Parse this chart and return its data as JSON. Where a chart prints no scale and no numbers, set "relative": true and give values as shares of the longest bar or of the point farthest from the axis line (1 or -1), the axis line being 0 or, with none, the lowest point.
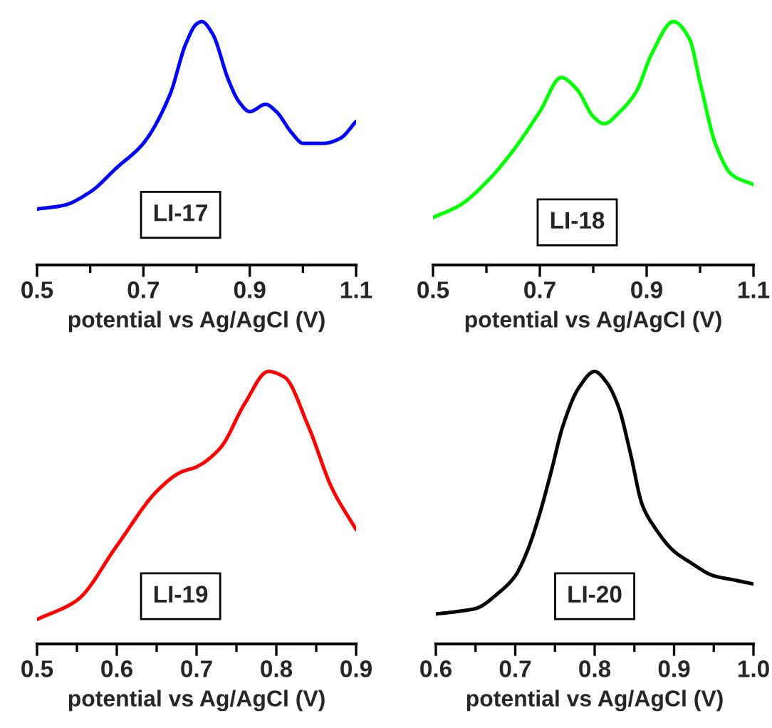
{
  "chart_data": [
    {
      "type": "line",
      "relative": true,
      "xlabel": "potential vs Ag/AgCl (V)",
      "annotations": [
        "LI-17"
      ],
      "tick_labels": "x",
      "grid": false,
      "legend": false,
      "xlim": [
        0.5,
        1.1
      ],
      "xticks": [
        0.5,
        {
          "value": 0.6,
          "label": null
        },
        0.7,
        {
          "value": 0.8,
          "label": null
        },
        0.9,
        {
          "value": 1.0,
          "label": null
        },
        1.1
      ],
      "series": [
        {
          "color": "#0000ff",
          "x": [
            0.5,
            0.55,
            0.6,
            0.65,
            0.7,
            0.75,
            0.78,
            0.8,
            0.81,
            0.83,
            0.86,
            0.88,
            0.9,
            0.93,
            0.95,
            0.98,
            1.0,
            1.04,
            1.07,
            1.1
          ],
          "values": [
            0.23,
            0.245,
            0.3,
            0.4,
            0.5,
            0.7,
            0.91,
            0.99,
            1.0,
            0.95,
            0.76,
            0.67,
            0.63,
            0.66,
            0.63,
            0.54,
            0.5,
            0.5,
            0.52,
            0.59
          ]
        }
      ]
    },
    {
      "type": "line",
      "relative": true,
      "xlabel": "potential vs Ag/AgCl (V)",
      "annotations": [
        "LI-18"
      ],
      "tick_labels": "x",
      "grid": false,
      "legend": false,
      "xlim": [
        0.5,
        1.1
      ],
      "xticks": [
        0.5,
        {
          "value": 0.6,
          "label": null
        },
        0.7,
        {
          "value": 0.8,
          "label": null
        },
        0.9,
        {
          "value": 1.0,
          "label": null
        },
        1.1
      ],
      "series": [
        {
          "color": "#00ff00",
          "x": [
            0.5,
            0.55,
            0.6,
            0.65,
            0.7,
            0.74,
            0.77,
            0.8,
            0.82,
            0.85,
            0.88,
            0.91,
            0.95,
            0.98,
            1.0,
            1.03,
            1.06,
            1.1
          ],
          "values": [
            0.195,
            0.245,
            0.34,
            0.47,
            0.63,
            0.77,
            0.72,
            0.61,
            0.58,
            0.63,
            0.71,
            0.87,
            1.0,
            0.93,
            0.75,
            0.49,
            0.37,
            0.33
          ]
        }
      ]
    },
    {
      "type": "line",
      "relative": true,
      "xlabel": "potential vs Ag/AgCl (V)",
      "annotations": [
        "LI-19"
      ],
      "tick_labels": "x",
      "grid": false,
      "legend": false,
      "xlim": [
        0.5,
        0.9
      ],
      "xticks": [
        0.5,
        {
          "value": 0.55,
          "label": null
        },
        0.6,
        {
          "value": 0.65,
          "label": null
        },
        0.7,
        {
          "value": 0.75,
          "label": null
        },
        0.8,
        {
          "value": 0.85,
          "label": null
        },
        0.9
      ],
      "series": [
        {
          "color": "#ff0000",
          "x": [
            0.5,
            0.55,
            0.6,
            0.65,
            0.68,
            0.7,
            0.73,
            0.76,
            0.79,
            0.81,
            0.84,
            0.87,
            0.9
          ],
          "values": [
            0.09,
            0.16,
            0.36,
            0.56,
            0.63,
            0.65,
            0.72,
            0.88,
            1.0,
            0.98,
            0.8,
            0.57,
            0.42
          ]
        }
      ]
    },
    {
      "type": "line",
      "relative": true,
      "xlabel": "potential vs Ag/AgCl (V)",
      "annotations": [
        "LI-20"
      ],
      "tick_labels": "x",
      "grid": false,
      "legend": false,
      "xlim": [
        0.6,
        1.0
      ],
      "xticks": [
        0.6,
        {
          "value": 0.65,
          "label": null
        },
        0.7,
        {
          "value": 0.75,
          "label": null
        },
        0.8,
        {
          "value": 0.85,
          "label": null
        },
        0.9,
        {
          "value": 0.95,
          "label": null
        },
        {
          "value": 1.0,
          "label": "1.0"
        }
      ],
      "series": [
        {
          "color": "#000000",
          "x": [
            0.6,
            0.63,
            0.65,
            0.68,
            0.7,
            0.715,
            0.73,
            0.745,
            0.76,
            0.78,
            0.8,
            0.815,
            0.83,
            0.845,
            0.86,
            0.875,
            0.9,
            0.92,
            0.95,
            0.975,
            1.0
          ],
          "values": [
            0.11,
            0.12,
            0.13,
            0.19,
            0.25,
            0.34,
            0.47,
            0.63,
            0.8,
            0.94,
            1.0,
            0.96,
            0.87,
            0.7,
            0.51,
            0.43,
            0.34,
            0.3,
            0.25,
            0.235,
            0.22
          ]
        }
      ]
    }
  ]
}
